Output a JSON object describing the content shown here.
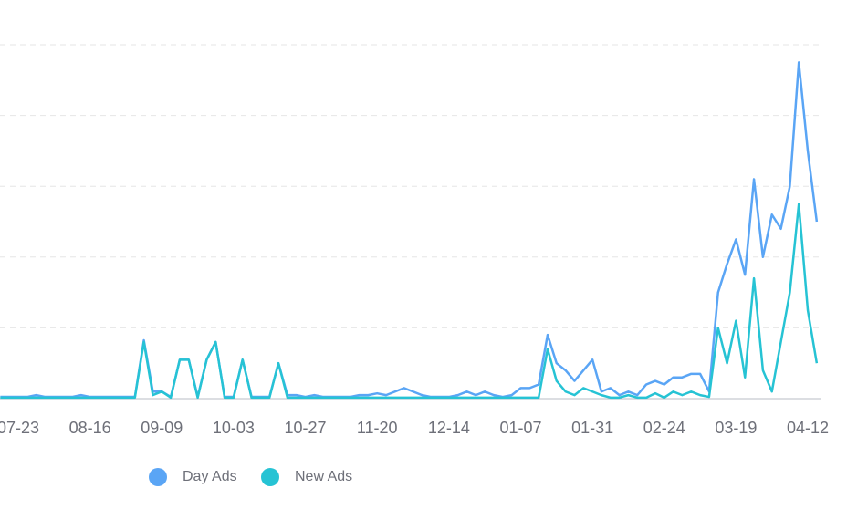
{
  "chart_data": {
    "type": "line",
    "categories": [
      null,
      null,
      "07-23",
      null,
      null,
      null,
      null,
      null,
      null,
      null,
      "08-16",
      null,
      null,
      null,
      null,
      null,
      null,
      null,
      "09-09",
      null,
      null,
      null,
      null,
      null,
      null,
      null,
      "10-03",
      null,
      null,
      null,
      null,
      null,
      null,
      null,
      "10-27",
      null,
      null,
      null,
      null,
      null,
      null,
      null,
      "11-20",
      null,
      null,
      null,
      null,
      null,
      null,
      null,
      "12-14",
      null,
      null,
      null,
      null,
      null,
      null,
      null,
      "01-07",
      null,
      null,
      null,
      null,
      null,
      null,
      null,
      "01-31",
      null,
      null,
      null,
      null,
      null,
      null,
      null,
      "02-24",
      null,
      null,
      null,
      null,
      null,
      null,
      null,
      "03-19",
      null,
      null,
      null,
      null,
      null,
      null,
      null,
      "04-12",
      null
    ],
    "series": [
      {
        "name": "Day Ads",
        "color": "#5aa5f5",
        "values": [
          0.5,
          0.5,
          0.5,
          0.5,
          1,
          0.5,
          0.5,
          0.5,
          0.5,
          1,
          0.5,
          0.5,
          0.5,
          0.5,
          0.5,
          0.5,
          16.5,
          2,
          2,
          0.5,
          11,
          11,
          0.5,
          11,
          16,
          0.5,
          0.5,
          11,
          0.5,
          0.5,
          0.5,
          10,
          1,
          1,
          0.5,
          1,
          0.5,
          0.5,
          0.5,
          0.5,
          1,
          1,
          1.5,
          1,
          2,
          3,
          2,
          1,
          0.5,
          0.5,
          0.5,
          1,
          2,
          1,
          2,
          1,
          0.5,
          1,
          3,
          3,
          4,
          18,
          10,
          8,
          5,
          8,
          11,
          2,
          3,
          1,
          2,
          1,
          4,
          5,
          4,
          6,
          6,
          7,
          7,
          2,
          30,
          38,
          45,
          35,
          62,
          40,
          52,
          48,
          60,
          95,
          70,
          50
        ]
      },
      {
        "name": "New Ads",
        "color": "#26c3d4",
        "values": [
          0.3,
          0.3,
          0.3,
          0.3,
          0.3,
          0.3,
          0.3,
          0.3,
          0.3,
          0.3,
          0.3,
          0.3,
          0.3,
          0.3,
          0.3,
          0.3,
          16,
          1,
          2,
          0.3,
          11,
          11,
          0.3,
          11,
          16,
          0.3,
          0.3,
          11,
          0.3,
          0.3,
          0.3,
          10,
          0.3,
          0.3,
          0.3,
          0.3,
          0.3,
          0.3,
          0.3,
          0.3,
          0.3,
          0.3,
          0.3,
          0.3,
          0.3,
          0.3,
          0.3,
          0.3,
          0.3,
          0.3,
          0.3,
          0.3,
          0.3,
          0.3,
          0.3,
          0.3,
          0.3,
          0.3,
          0.3,
          0.3,
          0.3,
          14,
          5,
          2,
          1,
          3,
          2,
          1,
          0.3,
          0.3,
          1,
          0.3,
          0.3,
          1.5,
          0.3,
          2,
          1,
          2,
          1,
          0.5,
          20,
          10,
          22,
          6,
          34,
          8,
          2,
          16,
          30,
          55,
          25,
          10
        ]
      }
    ],
    "ylim": [
      0,
      100
    ],
    "yticks": [
      0,
      20,
      40,
      60,
      80,
      100
    ],
    "grid": true
  }
}
